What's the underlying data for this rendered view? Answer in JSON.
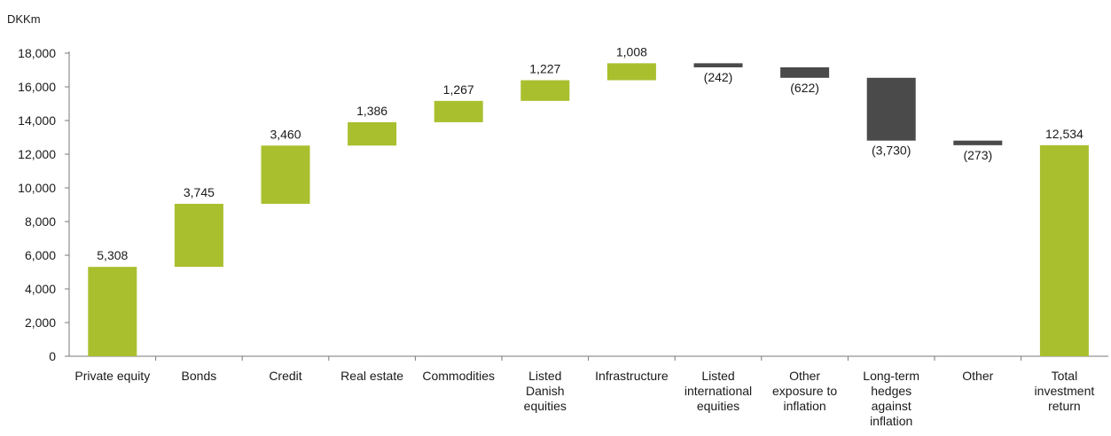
{
  "chart_data": {
    "type": "bar",
    "title": "",
    "unit_label": "DKKm",
    "ylim": [
      0,
      18000
    ],
    "yticks": [
      0,
      2000,
      4000,
      6000,
      8000,
      10000,
      12000,
      14000,
      16000,
      18000
    ],
    "ytick_labels": [
      "0",
      "2,000",
      "4,000",
      "6,000",
      "8,000",
      "10,000",
      "12,000",
      "14,000",
      "16,000",
      "18,000"
    ],
    "grid": false,
    "colors": {
      "positive": "#aabf2e",
      "negative": "#4a4a4a",
      "total": "#aabf2e"
    },
    "categories": [
      {
        "label_lines": [
          "Private equity"
        ],
        "value": 5308,
        "label": "5,308",
        "kind": "positive"
      },
      {
        "label_lines": [
          "Bonds"
        ],
        "value": 3745,
        "label": "3,745",
        "kind": "positive"
      },
      {
        "label_lines": [
          "Credit"
        ],
        "value": 3460,
        "label": "3,460",
        "kind": "positive"
      },
      {
        "label_lines": [
          "Real estate"
        ],
        "value": 1386,
        "label": "1,386",
        "kind": "positive"
      },
      {
        "label_lines": [
          "Commodities"
        ],
        "value": 1267,
        "label": "1,267",
        "kind": "positive"
      },
      {
        "label_lines": [
          "Listed",
          "Danish",
          "equities"
        ],
        "value": 1227,
        "label": "1,227",
        "kind": "positive"
      },
      {
        "label_lines": [
          "Infrastructure"
        ],
        "value": 1008,
        "label": "1,008",
        "kind": "positive"
      },
      {
        "label_lines": [
          "Listed",
          "international",
          "equities"
        ],
        "value": -242,
        "label": "(242)",
        "kind": "negative"
      },
      {
        "label_lines": [
          "Other",
          "exposure to",
          "inflation"
        ],
        "value": -622,
        "label": "(622)",
        "kind": "negative"
      },
      {
        "label_lines": [
          "Long-term",
          "hedges",
          "against",
          "inflation"
        ],
        "value": -3730,
        "label": "(3,730)",
        "kind": "negative"
      },
      {
        "label_lines": [
          "Other"
        ],
        "value": -273,
        "label": "(273)",
        "kind": "negative"
      },
      {
        "label_lines": [
          "Total",
          "investment",
          "return"
        ],
        "value": 12534,
        "label": "12,534",
        "kind": "total"
      }
    ]
  }
}
